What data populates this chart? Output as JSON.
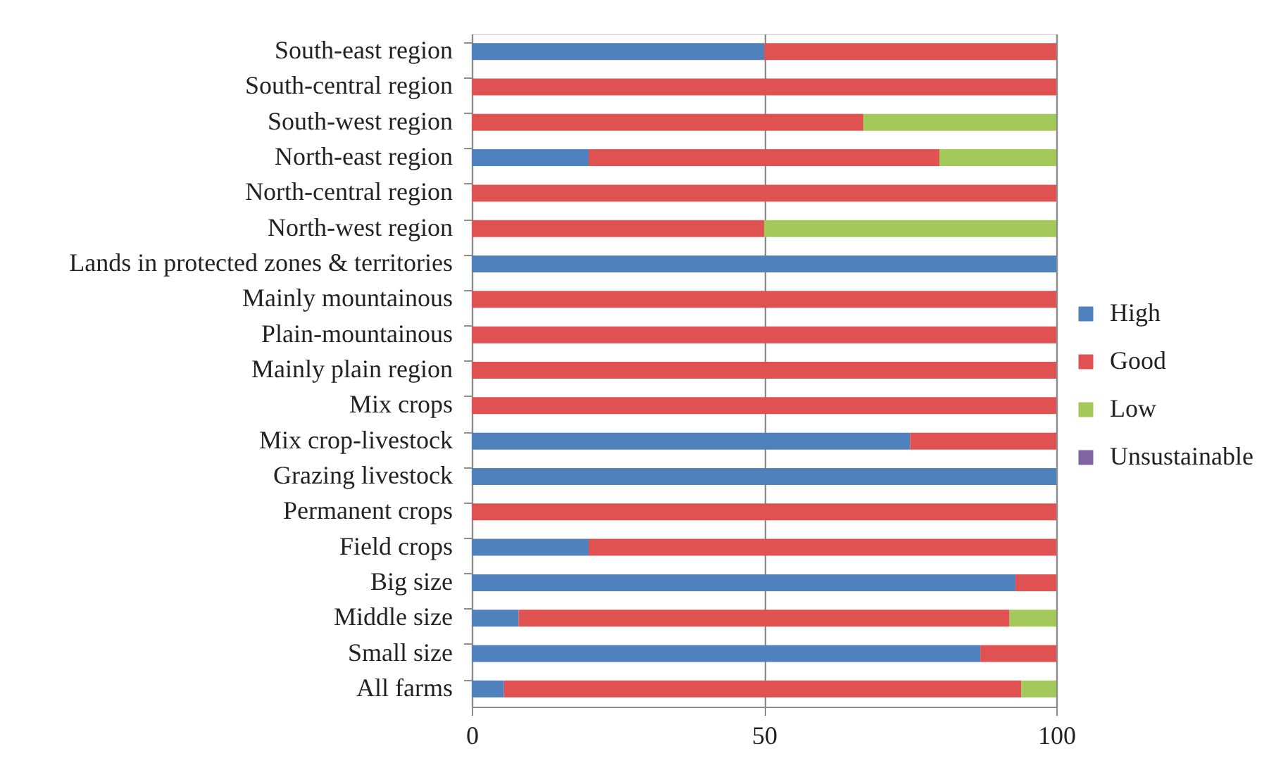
{
  "chart_data": {
    "type": "bar",
    "orientation": "horizontal",
    "stacked": true,
    "categories": [
      "South-east region",
      "South-central region",
      "South-west region",
      "North-east region",
      "North-central region",
      "North-west region",
      "Lands in protected zones & territories",
      "Mainly mountainous",
      "Plain-mountainous",
      "Mainly plain region",
      "Mix crops",
      "Mix crop-livestock",
      "Grazing livestock",
      "Permanent crops",
      "Field crops",
      "Big size",
      "Middle size",
      "Small size",
      "All farms"
    ],
    "series": [
      {
        "name": "High",
        "color": "#4f81bd",
        "values": [
          50,
          0,
          0,
          20,
          0,
          0,
          100,
          0,
          0,
          0,
          0,
          75,
          100,
          0,
          20,
          93,
          8,
          87,
          5.5
        ]
      },
      {
        "name": "Good",
        "color": "#e05252",
        "values": [
          50,
          100,
          67,
          60,
          100,
          50,
          0,
          100,
          100,
          100,
          100,
          25,
          0,
          100,
          80,
          7,
          84,
          13,
          88.5
        ]
      },
      {
        "name": "Low",
        "color": "#a3c95a",
        "values": [
          0,
          0,
          33,
          20,
          0,
          50,
          0,
          0,
          0,
          0,
          0,
          0,
          0,
          0,
          0,
          0,
          8,
          0,
          6
        ]
      },
      {
        "name": "Unsustainable",
        "color": "#8064a2",
        "values": [
          0,
          0,
          0,
          0,
          0,
          0,
          0,
          0,
          0,
          0,
          0,
          0,
          0,
          0,
          0,
          0,
          0,
          0,
          0
        ]
      }
    ],
    "xlim": [
      0,
      100
    ],
    "xticks": [
      0,
      50,
      100
    ],
    "grid": "x",
    "legend": "right"
  }
}
